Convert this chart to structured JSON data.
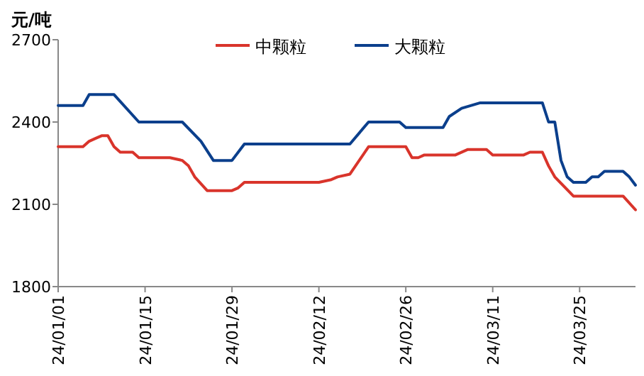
{
  "chart_data": {
    "type": "line",
    "ylabel": "元/吨",
    "legend": "top",
    "xlim": [
      "--01-01",
      "--04-03"
    ],
    "xticks": [
      {
        "value": "--01-01",
        "label": "24/01/01"
      },
      {
        "value": "--01-15",
        "label": "24/01/15"
      },
      {
        "value": "--01-29",
        "label": "24/01/29"
      },
      {
        "value": "--02-12",
        "label": "24/02/12"
      },
      {
        "value": "--02-26",
        "label": "24/02/26"
      },
      {
        "value": "--03-11",
        "label": "24/03/11"
      },
      {
        "value": "--03-25",
        "label": "24/03/25"
      }
    ],
    "ylim": [
      1800,
      2700
    ],
    "yticks": [
      1800,
      2100,
      2400,
      2700
    ],
    "series": [
      {
        "name": "中颗粒",
        "color": "#d9342b",
        "x": [
          "--01-01",
          "--01-05",
          "--01-06",
          "--01-07",
          "--01-08",
          "--01-09",
          "--01-10",
          "--01-11",
          "--01-13",
          "--01-14",
          "--01-19",
          "--01-21",
          "--01-22",
          "--01-23",
          "--01-25",
          "--01-29",
          "--01-30",
          "--01-31",
          "--02-12",
          "--02-14",
          "--02-15",
          "--02-17",
          "--02-20",
          "--02-26",
          "--02-27",
          "--02-28",
          "--02-29",
          "--03-05",
          "--03-07",
          "--03-10",
          "--03-11",
          "--03-16",
          "--03-17",
          "--03-19",
          "--03-20",
          "--03-21",
          "--03-24",
          "--04-01",
          "--04-03"
        ],
        "values": [
          2310,
          2310,
          2330,
          2340,
          2350,
          2350,
          2310,
          2290,
          2290,
          2270,
          2270,
          2260,
          2240,
          2200,
          2150,
          2150,
          2160,
          2180,
          2180,
          2190,
          2200,
          2210,
          2310,
          2310,
          2270,
          2270,
          2280,
          2280,
          2300,
          2300,
          2280,
          2280,
          2290,
          2290,
          2240,
          2200,
          2130,
          2130,
          2080
        ]
      },
      {
        "name": "大颗粒",
        "color": "#0b3f8c",
        "x": [
          "--01-01",
          "--01-05",
          "--01-06",
          "--01-10",
          "--01-14",
          "--01-21",
          "--01-24",
          "--01-26",
          "--01-29",
          "--01-31",
          "--02-17",
          "--02-20",
          "--02-25",
          "--02-26",
          "--03-03",
          "--03-04",
          "--03-06",
          "--03-09",
          "--03-19",
          "--03-20",
          "--03-21",
          "--03-22",
          "--03-23",
          "--03-24",
          "--03-26",
          "--03-27",
          "--03-28",
          "--03-29",
          "--04-01",
          "--04-02",
          "--04-03"
        ],
        "values": [
          2460,
          2460,
          2500,
          2500,
          2400,
          2400,
          2330,
          2260,
          2260,
          2320,
          2320,
          2400,
          2400,
          2380,
          2380,
          2420,
          2450,
          2470,
          2470,
          2400,
          2400,
          2260,
          2200,
          2180,
          2180,
          2200,
          2200,
          2220,
          2220,
          2200,
          2170
        ]
      }
    ]
  }
}
